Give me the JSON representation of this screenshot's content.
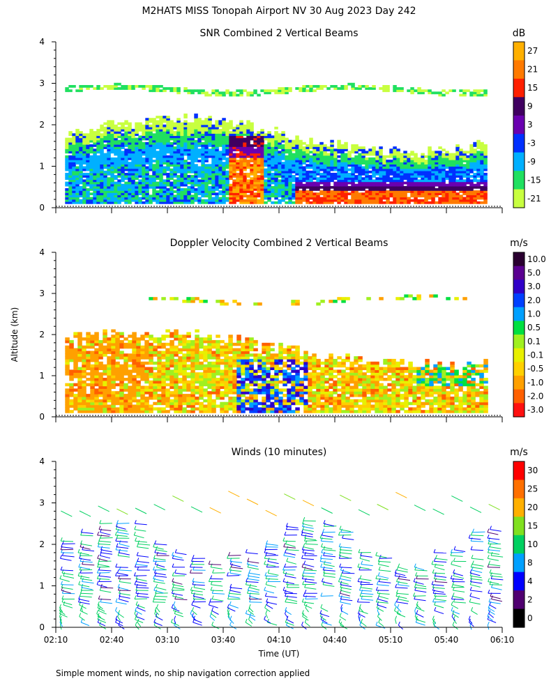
{
  "header": {
    "title": "M2HATS MISS Tonopah Airport NV  30 Aug 2023 Day 242"
  },
  "shared": {
    "ylabel": "Altitude (km)",
    "xlabel": "Time (UT)",
    "x_ticks": [
      "02:10",
      "02:40",
      "03:10",
      "03:40",
      "04:10",
      "04:40",
      "05:10",
      "05:40",
      "06:10"
    ],
    "y_ticks": [
      "0",
      "1",
      "2",
      "3",
      "4"
    ]
  },
  "footnote": "Simple moment winds, no ship navigation correction applied",
  "chart_data": [
    {
      "type": "heatmap",
      "title": "SNR Combined 2 Vertical Beams",
      "units": "dB",
      "xlim": [
        "02:10",
        "06:10"
      ],
      "ylim": [
        0,
        4
      ],
      "colorbar": {
        "labels": [
          "27",
          "21",
          "15",
          "9",
          "3",
          "-3",
          "-9",
          "-15",
          "-21"
        ],
        "colors": [
          "#ffb000",
          "#ff7a00",
          "#ff2000",
          "#400060",
          "#6a00b0",
          "#0030ff",
          "#00b0ff",
          "#20e060",
          "#c8ff40"
        ]
      },
      "features": [
        {
          "name": "upper layer",
          "time": [
            "02:10",
            "06:00"
          ],
          "alt_km": [
            2.6,
            2.9
          ],
          "snr_db": -18
        },
        {
          "name": "boundary layer",
          "time": [
            "02:10",
            "06:00"
          ],
          "alt_km": [
            0.1,
            2.0
          ],
          "snr_db": -9
        },
        {
          "name": "convective plume",
          "time": [
            "03:50",
            "04:00"
          ],
          "alt_km": [
            0.1,
            1.7
          ],
          "snr_db": 21
        },
        {
          "name": "strong near-surface layer",
          "time": [
            "04:20",
            "06:00"
          ],
          "alt_km": [
            0.1,
            0.6
          ],
          "snr_db": 15
        }
      ]
    },
    {
      "type": "heatmap",
      "title": "Doppler Velocity Combined 2 Vertical Beams",
      "units": "m/s",
      "xlim": [
        "02:10",
        "06:10"
      ],
      "ylim": [
        0,
        4
      ],
      "colorbar": {
        "labels": [
          "10.0",
          "5.0",
          "3.0",
          "2.0",
          "1.0",
          "0.5",
          "0.1",
          "-0.1",
          "-0.5",
          "-1.0",
          "-2.0",
          "-3.0"
        ],
        "colors": [
          "#2a0030",
          "#5a0090",
          "#3000c8",
          "#0040ff",
          "#00a0ff",
          "#00e040",
          "#a0f020",
          "#e8f000",
          "#ffd000",
          "#ffa000",
          "#ff6000",
          "#ff1010"
        ]
      },
      "features": [
        {
          "name": "boundary layer",
          "time": [
            "02:10",
            "06:00"
          ],
          "alt_km": [
            0.1,
            2.0
          ],
          "velocity_ms": -0.5
        },
        {
          "name": "updraft",
          "time": [
            "03:50",
            "04:25"
          ],
          "alt_km": [
            0.1,
            1.4
          ],
          "velocity_ms": 2.0
        }
      ]
    },
    {
      "type": "scatter",
      "title": "Winds (10 minutes)",
      "units": "m/s",
      "xlim": [
        "02:10",
        "06:10"
      ],
      "ylim": [
        0,
        4
      ],
      "colorbar": {
        "labels": [
          "30",
          "25",
          "20",
          "15",
          "10",
          "8",
          "4",
          "2",
          "0"
        ],
        "colors": [
          "#ff0000",
          "#ff7000",
          "#ffb000",
          "#80e020",
          "#00d060",
          "#00a0ff",
          "#0000ff",
          "#500070",
          "#000000"
        ]
      },
      "profile_times": [
        "02:15",
        "02:25",
        "02:35",
        "02:45",
        "02:55",
        "03:05",
        "03:15",
        "03:25",
        "03:35",
        "03:45",
        "03:55",
        "04:05",
        "04:15",
        "04:25",
        "04:35",
        "04:45",
        "04:55",
        "05:05",
        "05:15",
        "05:25",
        "05:35",
        "05:45",
        "05:55",
        "06:05"
      ]
    }
  ]
}
